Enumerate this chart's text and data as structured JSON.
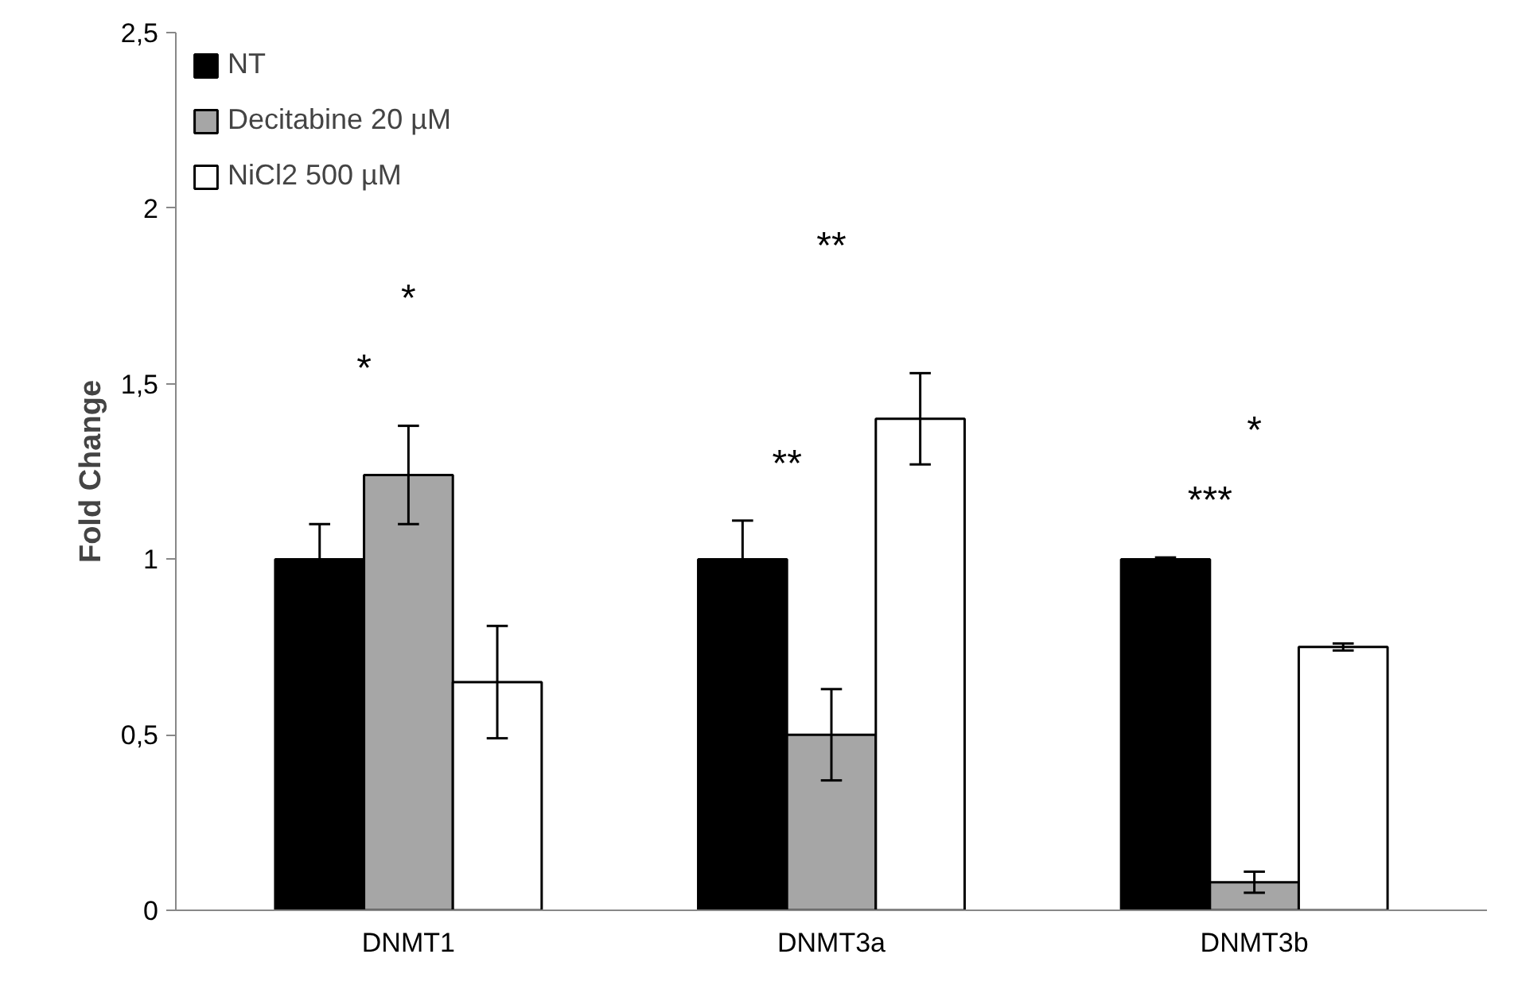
{
  "chart_data": {
    "type": "bar",
    "ylabel": "Fold Change",
    "categories": [
      "DNMT1",
      "DNMT3a",
      "DNMT3b"
    ],
    "series": [
      {
        "name": "NT",
        "color": "#000000",
        "values": [
          1.0,
          1.0,
          1.0
        ],
        "errors": [
          0.1,
          0.11,
          0.005
        ]
      },
      {
        "name": "Decitabine 20 µM",
        "color": "#a6a6a6",
        "values": [
          1.24,
          0.5,
          0.08
        ],
        "errors": [
          0.14,
          0.13,
          0.03
        ]
      },
      {
        "name": "NiCl2 500 µM",
        "color": "#ffffff",
        "values": [
          0.65,
          1.4,
          0.75
        ],
        "errors": [
          0.16,
          0.13,
          0.01
        ]
      }
    ],
    "ylim": [
      0,
      2.5
    ],
    "yticks": [
      0,
      {
        "value": 0.5,
        "label": "0,5"
      },
      1,
      {
        "value": 1.5,
        "label": "1,5"
      },
      2,
      {
        "value": 2.5,
        "label": "2,5"
      }
    ],
    "grid": false,
    "legend": "top left",
    "annotations": [
      "*",
      "*",
      "**",
      "**",
      "*",
      "***"
    ]
  }
}
